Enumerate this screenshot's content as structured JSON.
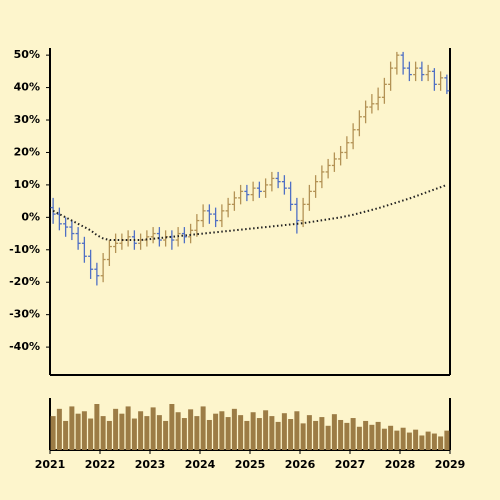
{
  "chart_data": {
    "type": "ohlc",
    "x": [
      2021.0625,
      2021.1875,
      2021.3125,
      2021.4375,
      2021.5625,
      2021.6875,
      2021.8125,
      2021.9375,
      2022.0625,
      2022.1875,
      2022.3125,
      2022.4375,
      2022.5625,
      2022.6875,
      2022.8125,
      2022.9375,
      2023.0625,
      2023.1875,
      2023.3125,
      2023.4375,
      2023.5625,
      2023.6875,
      2023.8125,
      2023.9375,
      2024.0625,
      2024.1875,
      2024.3125,
      2024.4375,
      2024.5625,
      2024.6875,
      2024.8125,
      2024.9375,
      2025.0625,
      2025.1875,
      2025.3125,
      2025.4375,
      2025.5625,
      2025.6875,
      2025.8125,
      2025.9375,
      2026.0625,
      2026.1875,
      2026.3125,
      2026.4375,
      2026.5625,
      2026.6875,
      2026.8125,
      2026.9375,
      2027.0625,
      2027.1875,
      2027.3125,
      2027.4375,
      2027.5625,
      2027.6875,
      2027.8125,
      2027.9375,
      2028.0625,
      2028.1875,
      2028.3125,
      2028.4375,
      2028.5625,
      2028.6875,
      2028.8125,
      2028.9375
    ],
    "open": [
      3,
      1,
      -2,
      -3,
      -5,
      -8,
      -12,
      -16,
      -18,
      -13,
      -9,
      -8,
      -7,
      -6,
      -8,
      -7,
      -6,
      -5,
      -7,
      -6,
      -7,
      -5,
      -6,
      -4,
      -1,
      2,
      1,
      -1,
      2,
      4,
      6,
      8,
      7,
      9,
      8,
      10,
      12,
      11,
      9,
      4,
      -1,
      4,
      8,
      11,
      14,
      16,
      18,
      20,
      23,
      27,
      31,
      34,
      35,
      37,
      41,
      46,
      50,
      46,
      44,
      46,
      44,
      45,
      41,
      43
    ],
    "high": [
      6,
      3,
      0,
      -1,
      -3,
      -6,
      -10,
      -14,
      -11,
      -7,
      -5,
      -5,
      -4,
      -4,
      -5,
      -4,
      -3,
      -3,
      -4,
      -4,
      -3,
      -3,
      -2,
      1,
      4,
      4,
      3,
      4,
      6,
      8,
      10,
      10,
      11,
      11,
      12,
      14,
      14,
      13,
      11,
      6,
      6,
      10,
      13,
      16,
      18,
      20,
      22,
      25,
      29,
      33,
      36,
      38,
      40,
      43,
      48,
      51,
      51,
      48,
      48,
      48,
      47,
      46,
      45,
      44
    ],
    "low": [
      -2,
      -4,
      -6,
      -7,
      -10,
      -14,
      -19,
      -21,
      -20,
      -15,
      -11,
      -10,
      -9,
      -10,
      -10,
      -9,
      -8,
      -9,
      -9,
      -10,
      -9,
      -8,
      -8,
      -6,
      -3,
      -2,
      -3,
      -3,
      0,
      2,
      4,
      5,
      5,
      6,
      6,
      8,
      9,
      7,
      2,
      -5,
      -3,
      2,
      6,
      9,
      12,
      14,
      16,
      18,
      21,
      25,
      29,
      32,
      33,
      35,
      39,
      44,
      44,
      42,
      42,
      42,
      42,
      39,
      39,
      38
    ],
    "close": [
      1,
      -2,
      -3,
      -5,
      -8,
      -12,
      -16,
      -18,
      -13,
      -9,
      -8,
      -7,
      -6,
      -8,
      -7,
      -6,
      -5,
      -7,
      -6,
      -7,
      -5,
      -6,
      -4,
      -1,
      2,
      1,
      -1,
      2,
      4,
      6,
      8,
      7,
      9,
      8,
      10,
      12,
      11,
      9,
      4,
      -1,
      4,
      8,
      11,
      14,
      16,
      18,
      20,
      23,
      27,
      31,
      34,
      35,
      37,
      41,
      46,
      50,
      46,
      44,
      46,
      44,
      45,
      41,
      43,
      39
    ],
    "up_color": "#b39255",
    "down_color": "#4f6fc4",
    "ma": {
      "color": "#222222",
      "values": [
        2,
        1,
        0,
        -1,
        -2,
        -3,
        -4,
        -5.5,
        -6.5,
        -7,
        -7,
        -7,
        -7,
        -7,
        -7,
        -6.8,
        -6.6,
        -6.4,
        -6.2,
        -6,
        -5.8,
        -5.6,
        -5.4,
        -5.2,
        -5,
        -4.8,
        -4.6,
        -4.4,
        -4.2,
        -4,
        -3.8,
        -3.6,
        -3.4,
        -3.2,
        -3,
        -2.8,
        -2.6,
        -2.4,
        -2.2,
        -2,
        -1.8,
        -1.5,
        -1.2,
        -0.9,
        -0.6,
        -0.3,
        0,
        0.4,
        0.8,
        1.3,
        1.8,
        2.3,
        2.8,
        3.4,
        4,
        4.6,
        5.2,
        5.8,
        6.5,
        7.2,
        7.9,
        8.6,
        9.3,
        10
      ]
    },
    "volume": {
      "color": "#9c7c45",
      "values": [
        70,
        85,
        60,
        90,
        75,
        80,
        65,
        95,
        70,
        60,
        85,
        75,
        90,
        65,
        80,
        70,
        88,
        72,
        60,
        95,
        78,
        66,
        84,
        70,
        90,
        62,
        75,
        80,
        68,
        85,
        72,
        60,
        78,
        66,
        82,
        70,
        58,
        76,
        64,
        80,
        55,
        72,
        60,
        68,
        50,
        74,
        62,
        56,
        66,
        48,
        60,
        52,
        58,
        44,
        50,
        40,
        46,
        36,
        42,
        30,
        38,
        34,
        28,
        40
      ]
    },
    "xlim": [
      2021,
      2029
    ],
    "xticks": [
      2021,
      2022,
      2023,
      2024,
      2025,
      2026,
      2027,
      2028,
      2029
    ],
    "ylim": [
      -48.6,
      52.2
    ],
    "yticks": [
      {
        "value": -40,
        "label": "-40%"
      },
      {
        "value": -30,
        "label": "-30%"
      },
      {
        "value": -20,
        "label": "-20%"
      },
      {
        "value": -10,
        "label": "-10%"
      },
      {
        "value": 0,
        "label": "0%"
      },
      {
        "value": 10,
        "label": "10%"
      },
      {
        "value": 20,
        "label": "20%"
      },
      {
        "value": 30,
        "label": "30%"
      },
      {
        "value": 40,
        "label": "40%"
      },
      {
        "value": 50,
        "label": "50%"
      }
    ]
  }
}
